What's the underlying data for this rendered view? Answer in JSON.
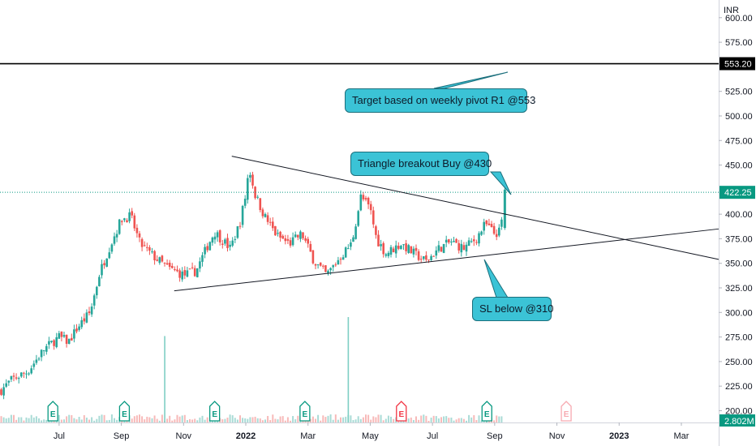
{
  "chart_data": {
    "type": "candlestick",
    "currency_label": "INR",
    "y_ticks": [
      200,
      225,
      250,
      275,
      300,
      325,
      350,
      375,
      400,
      425,
      450,
      475,
      500,
      525,
      550,
      575,
      600
    ],
    "y_tick_labels": [
      "200.00",
      "225.00",
      "250.00",
      "275.00",
      "300.00",
      "325.00",
      "350.00",
      "375.00",
      "400.00",
      "",
      "450.00",
      "475.00",
      "500.00",
      "525.00",
      "",
      "575.00",
      "600.00"
    ],
    "ylim": [
      188,
      618
    ],
    "x_labels": [
      "Jul",
      "Sep",
      "Nov",
      "2022",
      "Mar",
      "May",
      "Jul",
      "Sep",
      "Nov",
      "2023",
      "Mar"
    ],
    "x_label_bold": [
      false,
      false,
      false,
      true,
      false,
      false,
      false,
      false,
      false,
      true,
      false
    ],
    "x_months": [
      1,
      3,
      5,
      7,
      9,
      11,
      13,
      15,
      17,
      19,
      21
    ],
    "xlim": [
      -0.9,
      22.2
    ],
    "last_data_month": 15.3,
    "price_path": [
      [
        -0.9,
        220
      ],
      [
        -0.5,
        232
      ],
      [
        0.0,
        240
      ],
      [
        0.5,
        262
      ],
      [
        1.0,
        275
      ],
      [
        1.3,
        270
      ],
      [
        1.6,
        285
      ],
      [
        2.0,
        300
      ],
      [
        2.3,
        340
      ],
      [
        2.6,
        365
      ],
      [
        3.0,
        395
      ],
      [
        3.3,
        398
      ],
      [
        3.6,
        370
      ],
      [
        4.0,
        358
      ],
      [
        4.5,
        345
      ],
      [
        5.0,
        338
      ],
      [
        5.4,
        342
      ],
      [
        5.8,
        370
      ],
      [
        6.0,
        382
      ],
      [
        6.5,
        365
      ],
      [
        6.8,
        390
      ],
      [
        7.0,
        420
      ],
      [
        7.1,
        448
      ],
      [
        7.3,
        420
      ],
      [
        7.6,
        398
      ],
      [
        8.0,
        378
      ],
      [
        8.4,
        370
      ],
      [
        8.8,
        380
      ],
      [
        9.2,
        352
      ],
      [
        9.6,
        338
      ],
      [
        10.0,
        355
      ],
      [
        10.4,
        370
      ],
      [
        10.7,
        418
      ],
      [
        11.0,
        405
      ],
      [
        11.2,
        375
      ],
      [
        11.5,
        360
      ],
      [
        12.0,
        370
      ],
      [
        12.4,
        360
      ],
      [
        12.8,
        352
      ],
      [
        13.2,
        365
      ],
      [
        13.6,
        372
      ],
      [
        14.0,
        365
      ],
      [
        14.4,
        375
      ],
      [
        14.7,
        390
      ],
      [
        15.0,
        380
      ],
      [
        15.2,
        383
      ],
      [
        15.3,
        422
      ]
    ],
    "last_price": 422.25,
    "last_price_label": "422.25",
    "target_level": 553.2,
    "target_label": "553.20",
    "volume_label": "2.802M",
    "volume_spikes": [
      {
        "month": 4.4,
        "frac": 0.82
      },
      {
        "month": 10.3,
        "frac": 1.0
      },
      {
        "month": 14.75,
        "frac": 0.12
      }
    ],
    "earnings": [
      {
        "month": 0.8,
        "letter": "E",
        "color": "#089981"
      },
      {
        "month": 3.1,
        "letter": "E",
        "color": "#089981"
      },
      {
        "month": 6.0,
        "letter": "E",
        "color": "#089981"
      },
      {
        "month": 8.9,
        "letter": "E",
        "color": "#089981"
      },
      {
        "month": 12.0,
        "letter": "E",
        "color": "#f23645"
      },
      {
        "month": 14.75,
        "letter": "E",
        "color": "#089981"
      },
      {
        "month": 17.3,
        "letter": "E",
        "color": "#f7a9b0"
      }
    ],
    "trendlines": [
      {
        "name": "upper-trendline",
        "from": [
          6.55,
          459
        ],
        "to": [
          22.2,
          354
        ]
      },
      {
        "name": "lower-trendline",
        "from": [
          4.7,
          322
        ],
        "to": [
          22.2,
          385
        ]
      }
    ],
    "annotations": {
      "target": "Target based on weekly pivot R1 @553",
      "breakout": "Triangle breakout Buy @430",
      "stoploss": "SL below @310"
    },
    "colors": {
      "up": "#26a69a",
      "down": "#ef5350",
      "last_price_bg": "#089981",
      "target_line": "#000000",
      "callout_bg": "#3bc3d6"
    }
  }
}
